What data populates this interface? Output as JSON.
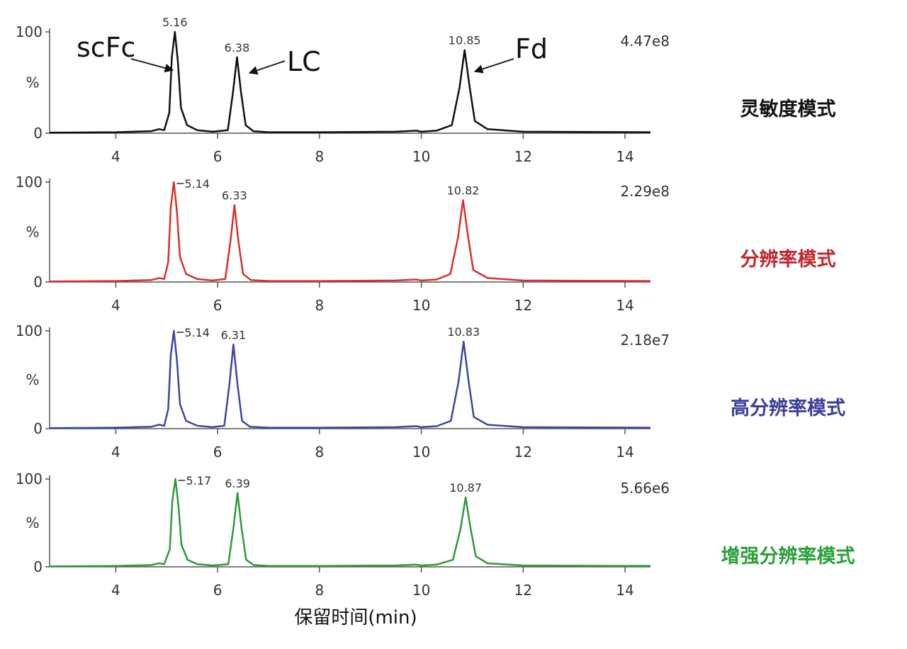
{
  "chart_data": [
    {
      "type": "line",
      "xlim": [
        2.7,
        14.5
      ],
      "xticks": [
        4,
        6,
        8,
        10,
        12,
        14
      ],
      "ylim": [
        0,
        100
      ],
      "yticks": [
        0,
        100
      ],
      "ylabel": "%",
      "intensity": "4.47e8",
      "mode_label": "灵敏度模式",
      "mode_color": "#111111",
      "peaks": [
        5.16,
        6.38,
        10.85
      ],
      "annotations": [
        {
          "text": "scFc"
        },
        {
          "text": "LC"
        },
        {
          "text": "Fd"
        }
      ],
      "x": [
        2.7,
        4.0,
        4.7,
        4.85,
        4.95,
        5.05,
        5.1,
        5.16,
        5.22,
        5.28,
        5.4,
        5.6,
        5.9,
        6.2,
        6.3,
        6.38,
        6.46,
        6.55,
        6.7,
        7.0,
        8.0,
        9.5,
        9.9,
        10.0,
        10.3,
        10.6,
        10.75,
        10.85,
        10.95,
        11.05,
        11.3,
        12.0,
        14.5
      ],
      "series": [
        {
          "color": "#111111",
          "values": [
            0.5,
            1,
            2,
            4,
            3,
            20,
            75,
            100,
            70,
            25,
            8,
            3,
            1.5,
            3,
            40,
            75,
            40,
            8,
            2,
            1,
            1,
            1.5,
            2.5,
            1.5,
            2.5,
            8,
            45,
            82,
            45,
            12,
            4,
            1.5,
            1
          ]
        }
      ]
    },
    {
      "type": "line",
      "xlim": [
        2.7,
        14.5
      ],
      "xticks": [
        4,
        6,
        8,
        10,
        12,
        14
      ],
      "ylim": [
        0,
        100
      ],
      "yticks": [
        0,
        100
      ],
      "ylabel": "%",
      "intensity": "2.29e8",
      "mode_label": "分辨率模式",
      "mode_color": "#c0282d",
      "peaks": [
        5.14,
        6.33,
        10.82
      ],
      "x": [
        2.7,
        4.0,
        4.7,
        4.85,
        4.95,
        5.03,
        5.08,
        5.14,
        5.2,
        5.26,
        5.38,
        5.6,
        5.9,
        6.15,
        6.25,
        6.33,
        6.41,
        6.5,
        6.65,
        7.0,
        8.0,
        9.5,
        9.9,
        10.0,
        10.3,
        10.57,
        10.72,
        10.82,
        10.92,
        11.02,
        11.3,
        12.0,
        14.5
      ],
      "series": [
        {
          "color": "#d9302c",
          "values": [
            0.5,
            1,
            2,
            4,
            3,
            20,
            75,
            100,
            70,
            25,
            8,
            3,
            1.5,
            3,
            40,
            77,
            40,
            8,
            2,
            1,
            1,
            1.5,
            2.5,
            1.5,
            2.5,
            8,
            45,
            82,
            45,
            12,
            4,
            1.5,
            1
          ]
        }
      ]
    },
    {
      "type": "line",
      "xlim": [
        2.7,
        14.5
      ],
      "xticks": [
        4,
        6,
        8,
        10,
        12,
        14
      ],
      "ylim": [
        0,
        100
      ],
      "yticks": [
        0,
        100
      ],
      "ylabel": "%",
      "intensity": "2.18e7",
      "mode_label": "高分辨率模式",
      "mode_color": "#3a3f98",
      "peaks": [
        5.14,
        6.31,
        10.83
      ],
      "x": [
        2.7,
        4.0,
        4.7,
        4.85,
        4.95,
        5.03,
        5.08,
        5.14,
        5.2,
        5.26,
        5.38,
        5.6,
        5.9,
        6.13,
        6.23,
        6.31,
        6.39,
        6.48,
        6.63,
        7.0,
        8.0,
        9.5,
        9.9,
        10.0,
        10.3,
        10.58,
        10.73,
        10.83,
        10.93,
        11.03,
        11.3,
        12.0,
        14.5
      ],
      "series": [
        {
          "color": "#3b47a0",
          "values": [
            0.5,
            1,
            2,
            4,
            3,
            20,
            75,
            100,
            70,
            25,
            8,
            3,
            1.5,
            3,
            45,
            86,
            45,
            8,
            2,
            1,
            1,
            1.5,
            2.5,
            1.5,
            2.5,
            8,
            48,
            89,
            48,
            12,
            4,
            1.5,
            1
          ]
        }
      ]
    },
    {
      "type": "line",
      "xlim": [
        2.7,
        14.5
      ],
      "xticks": [
        4,
        6,
        8,
        10,
        12,
        14
      ],
      "ylim": [
        0,
        100
      ],
      "yticks": [
        0,
        100
      ],
      "ylabel": "%",
      "intensity": "5.66e6",
      "mode_label": "增强分辨率模式",
      "mode_color": "#2aa039",
      "peaks": [
        5.17,
        6.39,
        10.87
      ],
      "xlabel": "保留时间(min)",
      "x": [
        2.7,
        4.0,
        4.7,
        4.85,
        4.95,
        5.06,
        5.11,
        5.17,
        5.23,
        5.29,
        5.41,
        5.6,
        5.9,
        6.21,
        6.31,
        6.39,
        6.47,
        6.56,
        6.71,
        7.0,
        8.0,
        9.5,
        9.9,
        10.0,
        10.3,
        10.62,
        10.77,
        10.87,
        10.97,
        11.07,
        11.3,
        12.0,
        14.5
      ],
      "series": [
        {
          "color": "#2e9a3a",
          "values": [
            0.5,
            1,
            2,
            4,
            3,
            20,
            75,
            100,
            70,
            25,
            8,
            3,
            1.5,
            3,
            44,
            84,
            44,
            8,
            2,
            1,
            1,
            1.5,
            2.5,
            1.5,
            2.5,
            8,
            43,
            79,
            43,
            12,
            4,
            1.5,
            1
          ]
        }
      ]
    }
  ]
}
